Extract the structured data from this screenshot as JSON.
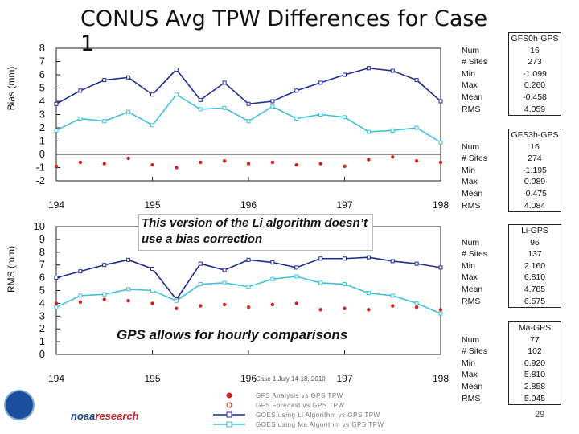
{
  "title": "CONUS Avg TPW Differences for Case 1",
  "colors": {
    "navy": "#1f2b9a",
    "cyan": "#3fc2d9",
    "red": "#d11f1f"
  },
  "callouts": {
    "algorithm_note": "This version of the Li algorithm doesn’t use a bias correction",
    "hourly_note": "GPS allows for hourly comparisons"
  },
  "footer": {
    "case_label": "Case 1 July 14-18, 2010",
    "brand": "noaaresearch",
    "page_number": "29"
  },
  "legend": [
    "GFS Analysis vs GPS TPW",
    "GFS Forecast vs GPS TPW",
    "GOES using Li Algorithm vs GPS TPW",
    "GOES using Ma Algorithm vs GPS TPW"
  ],
  "stats_labels": [
    "Num",
    "# Sites",
    "Min",
    "Max",
    "Mean",
    "RMS"
  ],
  "stats_tables": [
    {
      "header": "GFS0h-GPS",
      "values": [
        "16",
        "273",
        "-1.099",
        "0.260",
        "-0.458",
        "4.059"
      ]
    },
    {
      "header": "GFS3h-GPS",
      "values": [
        "16",
        "274",
        "-1.195",
        "0.089",
        "-0.475",
        "4.084"
      ]
    },
    {
      "header": "Li-GPS",
      "values": [
        "96",
        "137",
        "2.160",
        "6.810",
        "4.785",
        "6.575"
      ]
    },
    {
      "header": "Ma-GPS",
      "values": [
        "77",
        "102",
        "0.920",
        "5.810",
        "2.858",
        "5.045"
      ]
    }
  ],
  "chart_data": [
    {
      "type": "scatter",
      "title": "",
      "ylabel": "Bias (mm)",
      "xlabel": "",
      "ylim": [
        -2,
        8
      ],
      "xlim": [
        194,
        198
      ],
      "xticks": [
        "194",
        "195",
        "196",
        "197",
        "198"
      ],
      "yticks": [
        "8",
        "7",
        "6",
        "5",
        "4",
        "3",
        "2",
        "1",
        "0",
        "-1",
        "-2"
      ],
      "series": [
        {
          "name": "GOES Li",
          "color": "#1f2b9a",
          "x": [
            194.0,
            194.25,
            194.5,
            194.75,
            195.0,
            195.25,
            195.5,
            195.75,
            196.0,
            196.25,
            196.5,
            196.75,
            197.0,
            197.25,
            197.5,
            197.75,
            198.0
          ],
          "values": [
            3.8,
            4.8,
            5.6,
            5.8,
            4.5,
            6.4,
            4.1,
            5.4,
            3.8,
            4.0,
            4.8,
            5.4,
            6.0,
            6.5,
            6.3,
            5.6,
            4.0
          ]
        },
        {
          "name": "GOES Ma",
          "color": "#3fc2d9",
          "x": [
            194.0,
            194.25,
            194.5,
            194.75,
            195.0,
            195.25,
            195.5,
            195.75,
            196.0,
            196.25,
            196.5,
            196.75,
            197.0,
            197.25,
            197.5,
            197.75,
            198.0
          ],
          "values": [
            1.8,
            2.7,
            2.5,
            3.2,
            2.2,
            4.5,
            3.4,
            3.5,
            2.5,
            3.6,
            2.7,
            3.0,
            2.8,
            1.7,
            1.8,
            2.0,
            0.9
          ]
        },
        {
          "name": "GFS",
          "color": "#d11f1f",
          "x": [
            194.0,
            194.25,
            194.5,
            194.75,
            195.0,
            195.25,
            195.5,
            195.75,
            196.0,
            196.25,
            196.5,
            196.75,
            197.0,
            197.25,
            197.5,
            197.75,
            198.0
          ],
          "values": [
            -0.9,
            -0.6,
            -0.7,
            -0.3,
            -0.8,
            -1.0,
            -0.6,
            -0.5,
            -0.7,
            -0.6,
            -0.8,
            -0.7,
            -0.9,
            -0.4,
            -0.2,
            -0.5,
            -0.6
          ]
        }
      ]
    },
    {
      "type": "scatter",
      "title": "",
      "ylabel": "RMS (mm)",
      "xlabel": "",
      "ylim": [
        0,
        10
      ],
      "xlim": [
        194,
        198
      ],
      "xticks": [
        "194",
        "195",
        "196",
        "197",
        "198"
      ],
      "yticks": [
        "10",
        "9",
        "8",
        "7",
        "6",
        "5",
        "4",
        "3",
        "2",
        "1",
        "0"
      ],
      "series": [
        {
          "name": "GOES Li",
          "color": "#1f2b9a",
          "x": [
            194.0,
            194.25,
            194.5,
            194.75,
            195.0,
            195.25,
            195.5,
            195.75,
            196.0,
            196.25,
            196.5,
            196.75,
            197.0,
            197.25,
            197.5,
            197.75,
            198.0
          ],
          "values": [
            6.0,
            6.5,
            7.0,
            7.4,
            6.7,
            4.3,
            7.1,
            6.6,
            7.4,
            7.2,
            6.8,
            7.5,
            7.5,
            7.6,
            7.3,
            7.1,
            6.8
          ]
        },
        {
          "name": "GOES Ma",
          "color": "#3fc2d9",
          "x": [
            194.0,
            194.25,
            194.5,
            194.75,
            195.0,
            195.25,
            195.5,
            195.75,
            196.0,
            196.25,
            196.5,
            196.75,
            197.0,
            197.25,
            197.5,
            197.75,
            198.0
          ],
          "values": [
            3.7,
            4.6,
            4.7,
            5.1,
            5.0,
            4.2,
            5.5,
            5.6,
            5.3,
            5.9,
            6.1,
            5.6,
            5.5,
            4.8,
            4.6,
            4.0,
            3.2
          ]
        },
        {
          "name": "GFS",
          "color": "#d11f1f",
          "x": [
            194.0,
            194.25,
            194.5,
            194.75,
            195.0,
            195.25,
            195.5,
            195.75,
            196.0,
            196.25,
            196.5,
            196.75,
            197.0,
            197.25,
            197.5,
            197.75,
            198.0
          ],
          "values": [
            4.0,
            4.1,
            4.3,
            4.2,
            4.0,
            3.6,
            3.8,
            3.9,
            3.7,
            3.9,
            4.0,
            3.5,
            3.6,
            3.5,
            3.8,
            3.7,
            3.5
          ]
        }
      ]
    }
  ]
}
